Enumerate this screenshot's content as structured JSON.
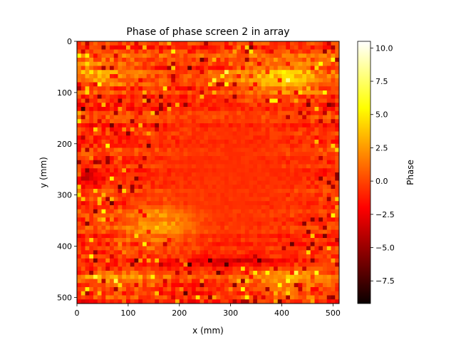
{
  "chart_data": {
    "type": "heatmap",
    "title": "Phase of phase screen 2 in array",
    "xlabel": "x (mm)",
    "ylabel": "y (mm)",
    "xlim": [
      0,
      512
    ],
    "ylim": [
      512,
      0
    ],
    "xticks": [
      0,
      100,
      200,
      300,
      400,
      500
    ],
    "yticks": [
      0,
      100,
      200,
      300,
      400,
      500
    ],
    "colorbar": {
      "label": "Phase",
      "colormap": "hot",
      "range": [
        -9.2,
        10.5
      ],
      "ticks": [
        -7.5,
        -5.0,
        -2.5,
        0.0,
        2.5,
        5.0,
        7.5,
        10.0
      ],
      "tick_labels": [
        "−7.5",
        "−5.0",
        "−2.5",
        "0.0",
        "2.5",
        "5.0",
        "7.5",
        "10.0"
      ]
    },
    "field_description": "Mostly uniform orange-red phase around 0 in center region (~x 180-460, y 120-420); noisy yellow patches (2.5-6) near top-right, top-left bands, bottom edge; darker red streaks (-3 to -5) at edges"
  }
}
